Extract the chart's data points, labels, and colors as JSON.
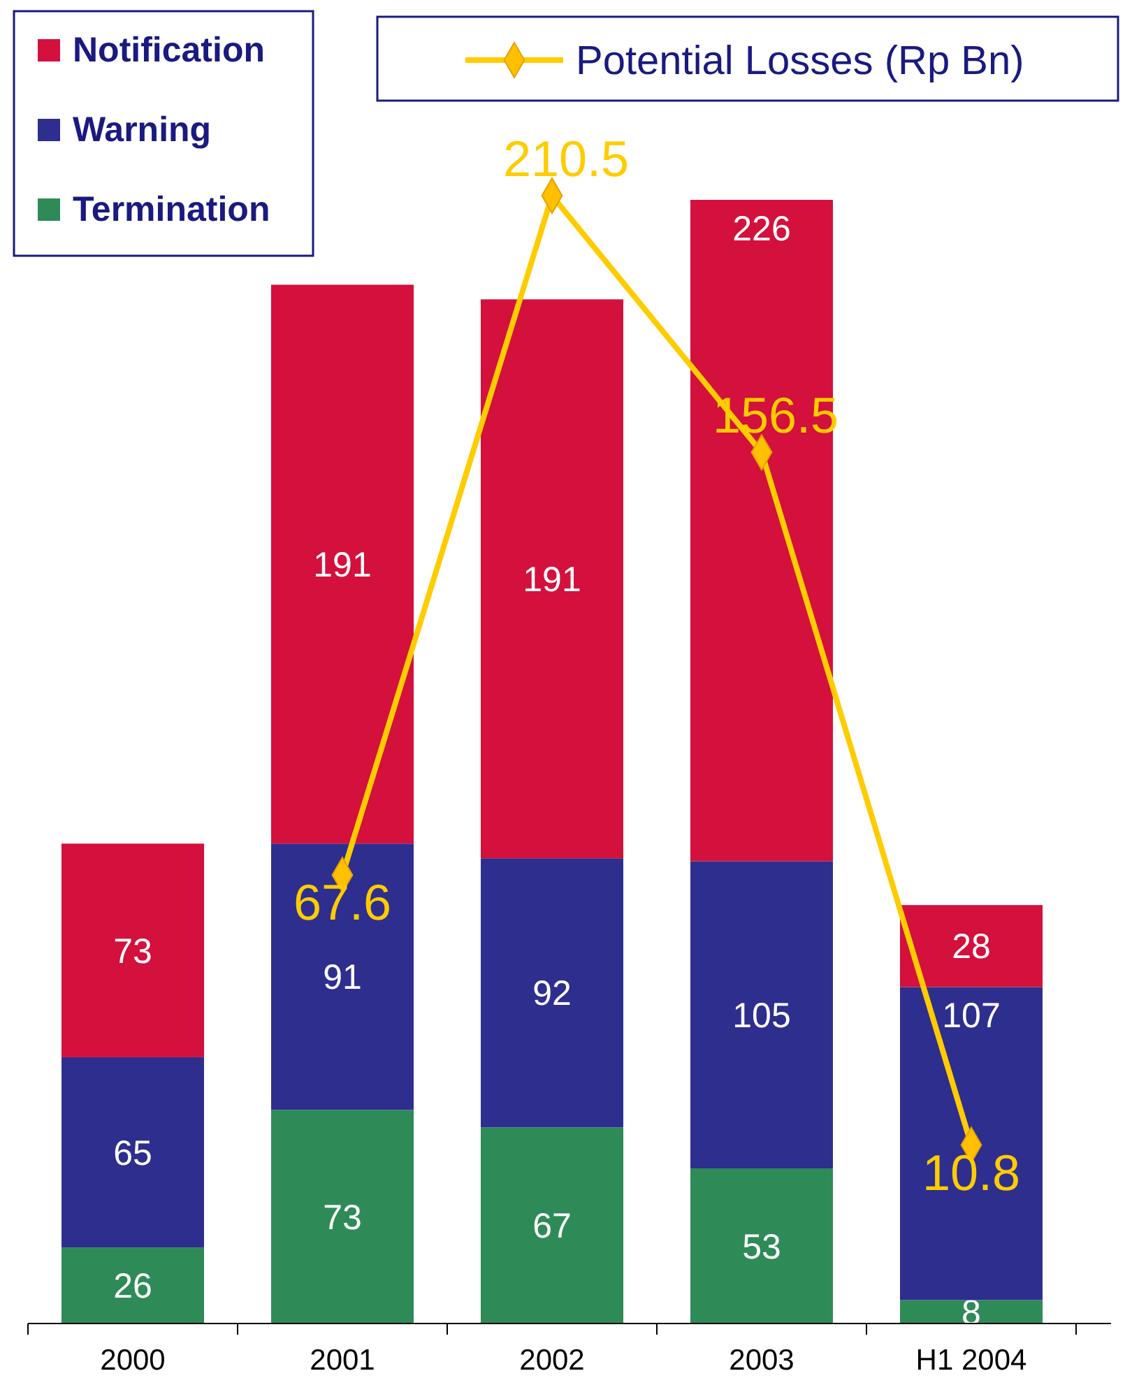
{
  "chart_data": {
    "type": "bar",
    "stacked": true,
    "categories": [
      "2000",
      "2001",
      "2002",
      "2003",
      "H1 2004"
    ],
    "series": [
      {
        "name": "Termination",
        "color": "#2e8b57",
        "values": [
          26,
          73,
          67,
          53,
          8
        ]
      },
      {
        "name": "Warning",
        "color": "#2e2e8f",
        "values": [
          65,
          91,
          92,
          105,
          107
        ]
      },
      {
        "name": "Notification",
        "color": "#d4103c",
        "values": [
          73,
          191,
          191,
          226,
          28
        ]
      },
      {
        "name": "Potential Losses (Rp Bn)",
        "type": "line",
        "axis": "y2",
        "color": "#ffcc00",
        "marker": "diamond",
        "values": [
          null,
          67.6,
          210.5,
          156.5,
          10.8
        ]
      }
    ],
    "tick_labels": "x",
    "data_labels": true,
    "legend": "top"
  }
}
